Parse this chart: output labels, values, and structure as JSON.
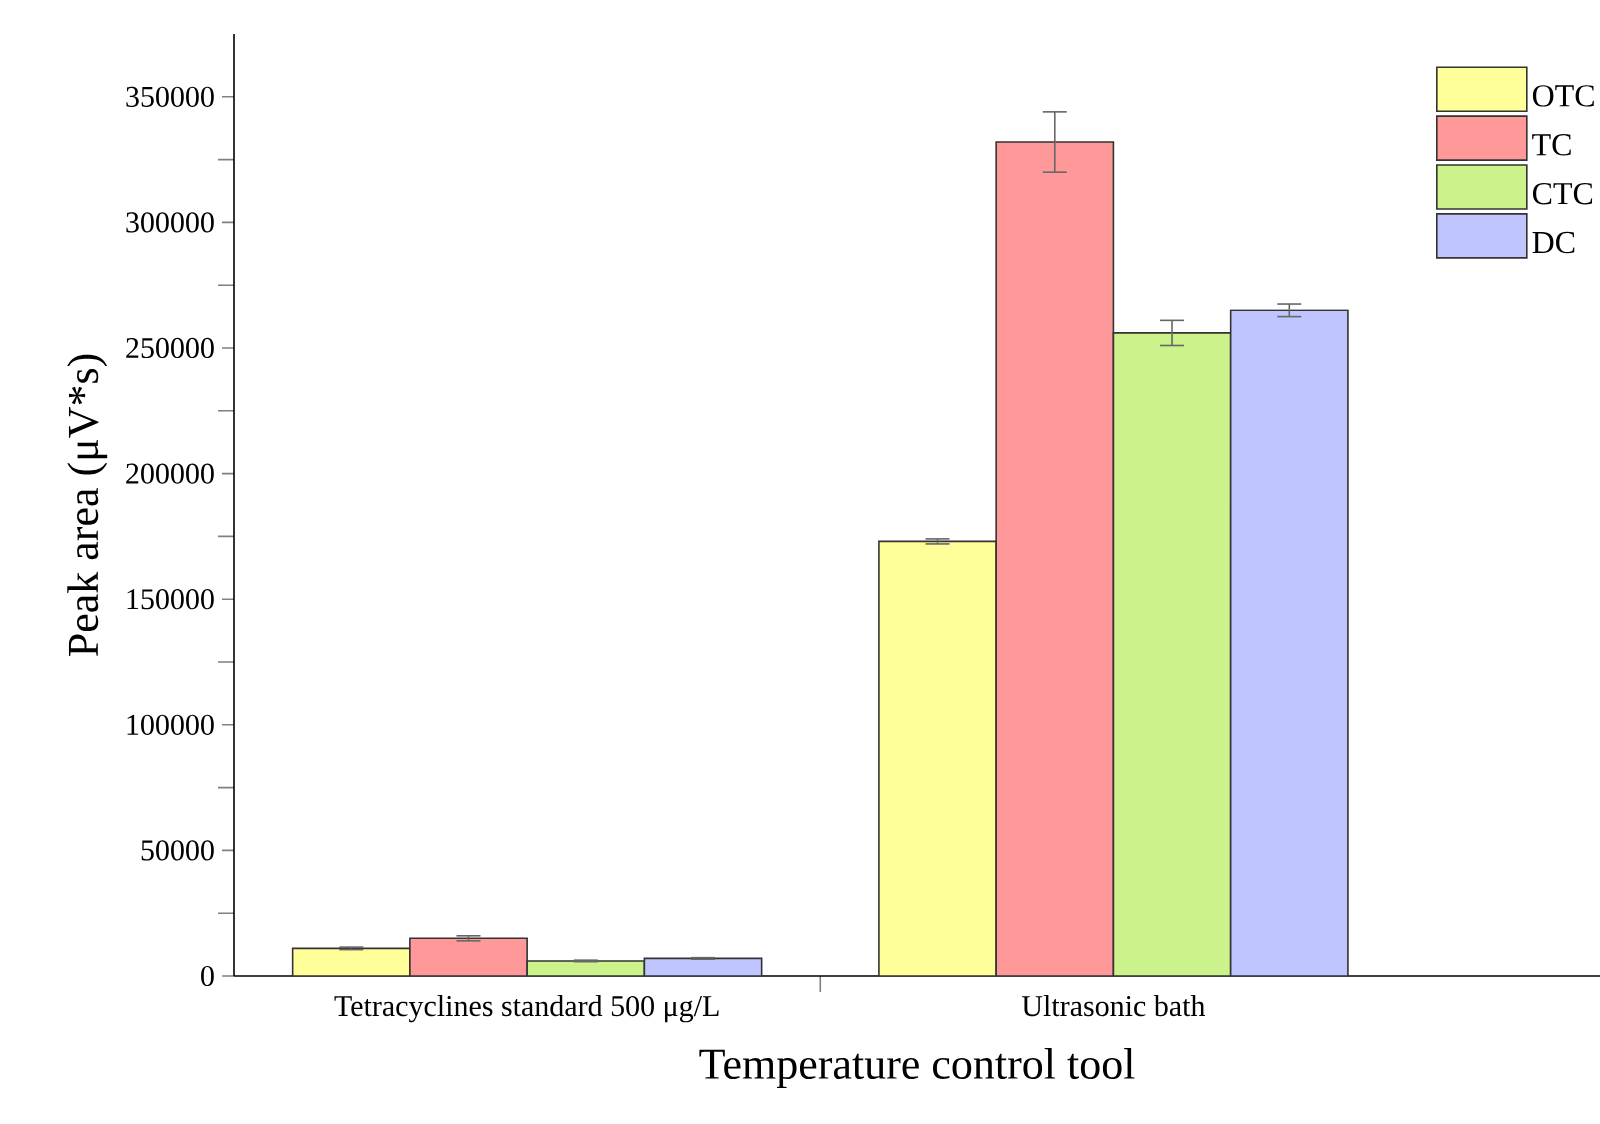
{
  "chart_data": {
    "type": "bar",
    "xlabel": "Temperature control tool",
    "ylabel": "Peak area (μV*s)",
    "categories": [
      "Tetracyclines standard 500 μg/L",
      "Ultrasonic bath"
    ],
    "ylim": [
      0,
      375000
    ],
    "yticks": [
      0,
      50000,
      100000,
      150000,
      200000,
      250000,
      300000,
      350000
    ],
    "legend": "top right",
    "series": [
      {
        "name": "OTC",
        "color": "#ffff99",
        "values": [
          11000,
          173000
        ],
        "errors": [
          500,
          1000
        ]
      },
      {
        "name": "TC",
        "color": "#ff9999",
        "values": [
          15000,
          332000
        ],
        "errors": [
          1000,
          12000
        ]
      },
      {
        "name": "CTC",
        "color": "#ccf28c",
        "values": [
          6000,
          256000
        ],
        "errors": [
          300,
          5000
        ]
      },
      {
        "name": "DC",
        "color": "#bfc6ff",
        "values": [
          7000,
          265000
        ],
        "errors": [
          300,
          2500
        ]
      }
    ]
  }
}
